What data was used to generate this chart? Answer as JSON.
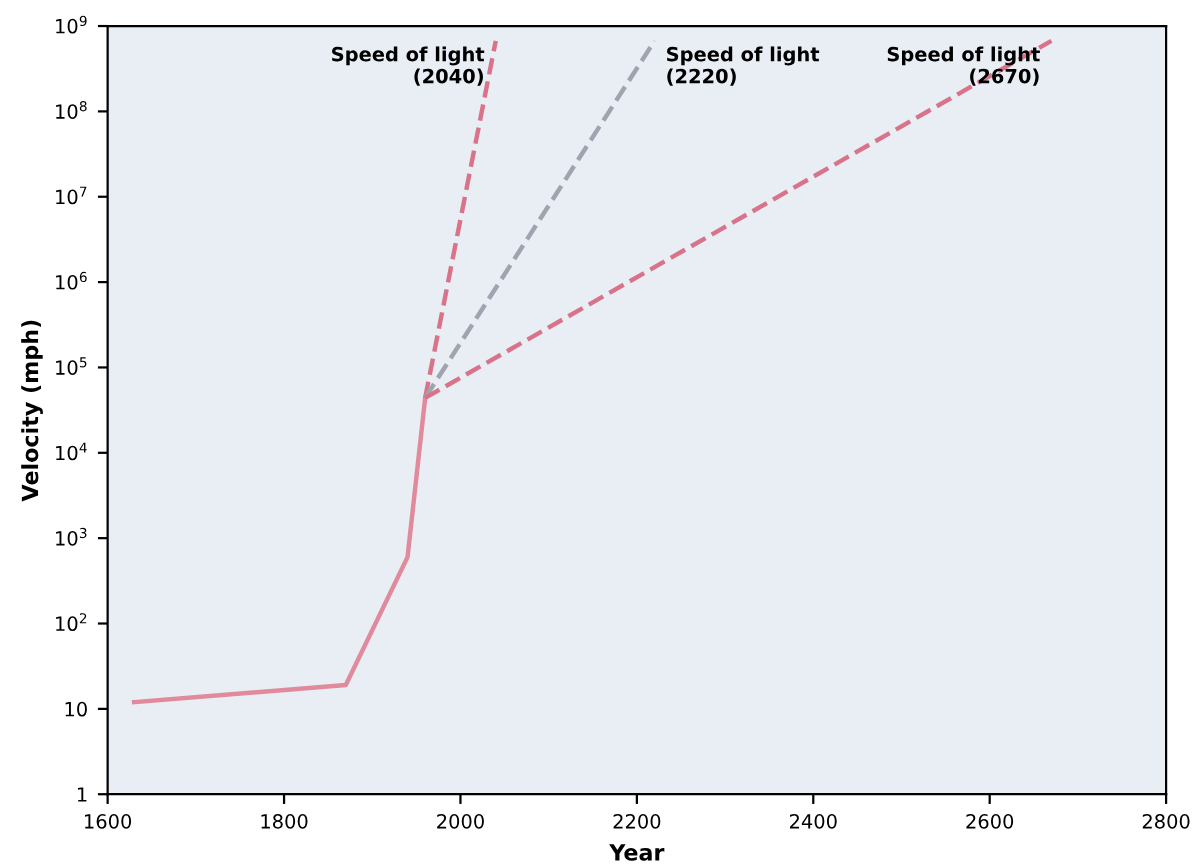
{
  "chart_data": {
    "type": "line",
    "xlabel": "Year",
    "ylabel": "Velocity (mph)",
    "log": "y",
    "xlim": [
      1600,
      2800
    ],
    "xticks": [
      1600,
      1800,
      2000,
      2200,
      2400,
      2600,
      2800
    ],
    "ylim": [
      1,
      1000000000
    ],
    "yticks": [
      {
        "value": 1,
        "label": "1"
      },
      {
        "value": 10,
        "label": "10"
      },
      {
        "value": 100,
        "label": "10$^{2}$"
      },
      {
        "value": 1000,
        "label": "10$^{3}$"
      },
      {
        "value": 10000,
        "label": "10$^{4}$"
      },
      {
        "value": 100000,
        "label": "10$^{5}$"
      },
      {
        "value": 1000000,
        "label": "10$^{6}$"
      },
      {
        "value": 10000000,
        "label": "10$^{7}$"
      },
      {
        "value": 100000000,
        "label": "10$^{8}$"
      },
      {
        "value": 1000000000,
        "label": "10$^{9}$"
      }
    ],
    "grid": false,
    "legend": false,
    "series": [
      {
        "color": "#e08a9c",
        "line_style": "solid",
        "x": [
          1630,
          1870,
          1940,
          1960
        ],
        "values": [
          12,
          19,
          600,
          44000
        ]
      },
      {
        "color": "#d9738a",
        "line_style": "dashed",
        "x": [
          1960,
          2040
        ],
        "values": [
          44000,
          670000000
        ]
      },
      {
        "color": "#a0a4b0",
        "line_style": "dashed",
        "x": [
          1960,
          2220
        ],
        "values": [
          44000,
          670000000
        ]
      },
      {
        "color": "#d9738a",
        "line_style": "dashed",
        "x": [
          1960,
          2670
        ],
        "values": [
          44000,
          670000000
        ]
      }
    ],
    "annotations": [
      {
        "text": "Speed of light\n(2040)",
        "x": 2040,
        "y": 670000000
      },
      {
        "text": "Speed of light\n(2220)",
        "x": 2220,
        "y": 670000000
      },
      {
        "text": "Speed of light\n(2670)",
        "x": 2670,
        "y": 670000000
      }
    ]
  }
}
